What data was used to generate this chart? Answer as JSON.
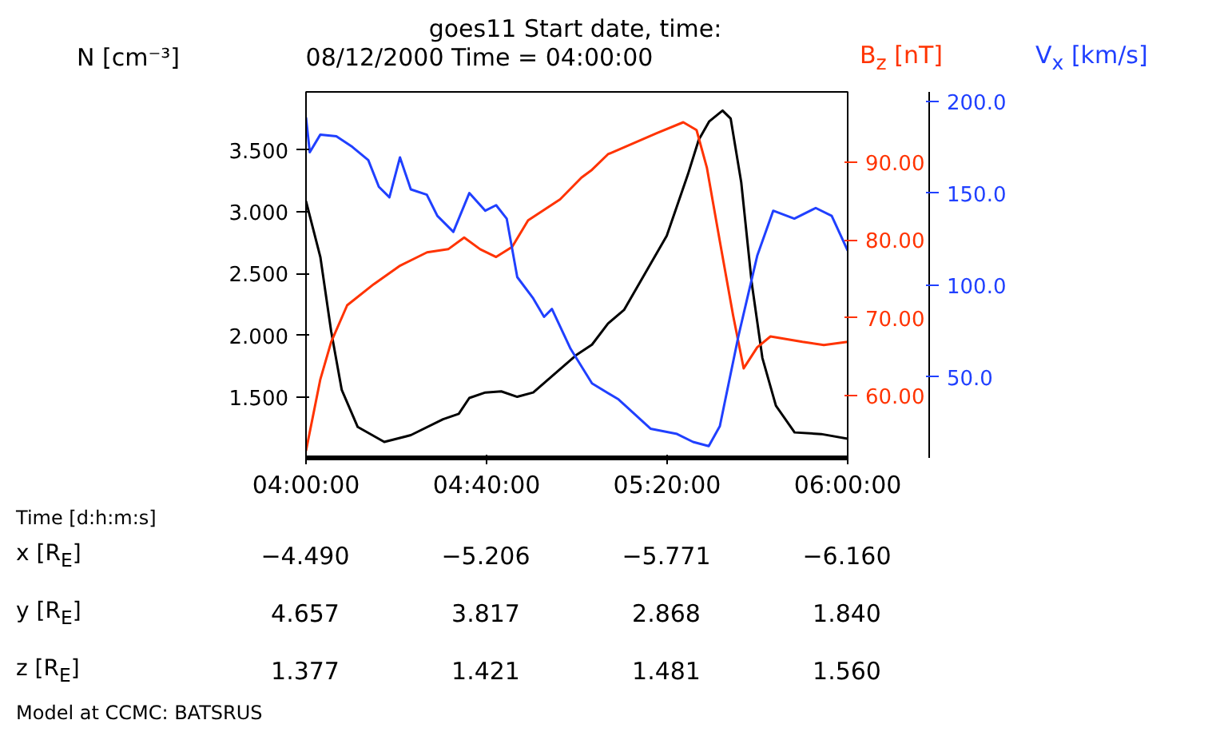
{
  "chart_data": {
    "type": "line",
    "title": "goes11 Start date, time:",
    "subtitle": "08/12/2000 Time = 04:00:00",
    "ylabel": "N [cm⁻³]",
    "y2label": "B$_{z}$ [nT]",
    "y3label": "V$_{x}$ [km/s]",
    "xlabel": "Time [d:h:m:s]",
    "xlim": [
      4.0,
      6.0
    ],
    "xticks": [
      {
        "value": 4.0,
        "label": "04:00:00"
      },
      {
        "value": 4.6667,
        "label": "04:40:00"
      },
      {
        "value": 5.3333,
        "label": "05:20:00"
      },
      {
        "value": 6.0,
        "label": "06:00:00"
      }
    ],
    "ylim": [
      1.01,
      3.97
    ],
    "yticks": [
      {
        "value": 1.5,
        "label": "1.500"
      },
      {
        "value": 2.0,
        "label": "2.000"
      },
      {
        "value": 2.5,
        "label": "2.500"
      },
      {
        "value": 3.0,
        "label": "3.000"
      },
      {
        "value": 3.5,
        "label": "3.500"
      }
    ],
    "y2lim": [
      52.0,
      99.0
    ],
    "y2ticks": [
      {
        "value": 60,
        "label": "60.00"
      },
      {
        "value": 70,
        "label": "70.00"
      },
      {
        "value": 80,
        "label": "80.00"
      },
      {
        "value": 90,
        "label": "90.00"
      }
    ],
    "y3lim": [
      6.0,
      205.0
    ],
    "y3ticks": [
      {
        "value": 50,
        "label": "50.0"
      },
      {
        "value": 100,
        "label": "100.0"
      },
      {
        "value": 150,
        "label": "150.0"
      },
      {
        "value": 200,
        "label": "200.0"
      }
    ],
    "grid": false,
    "marker": "none",
    "line_style": "solid",
    "series": [
      {
        "color": "#000000",
        "x": [
          4.0,
          4.053,
          4.093,
          4.132,
          4.191,
          4.289,
          4.387,
          4.506,
          4.564,
          4.603,
          4.662,
          4.721,
          4.78,
          4.839,
          4.918,
          4.997,
          5.056,
          5.115,
          5.174,
          5.253,
          5.332,
          5.41,
          5.45,
          5.489,
          5.538,
          5.568,
          5.607,
          5.646,
          5.685,
          5.735,
          5.804,
          5.902,
          6.0
        ],
        "values": [
          3.087,
          2.635,
          2.033,
          1.56,
          1.26,
          1.139,
          1.194,
          1.323,
          1.366,
          1.495,
          1.539,
          1.548,
          1.504,
          1.539,
          1.69,
          1.84,
          1.926,
          2.097,
          2.206,
          2.506,
          2.807,
          3.302,
          3.582,
          3.732,
          3.819,
          3.754,
          3.238,
          2.42,
          1.819,
          1.432,
          1.216,
          1.203,
          1.165
        ]
      },
      {
        "color": "#ff3300",
        "axis": "y2",
        "x": [
          4.0,
          4.053,
          4.093,
          4.152,
          4.25,
          4.348,
          4.447,
          4.525,
          4.584,
          4.643,
          4.702,
          4.761,
          4.82,
          4.938,
          5.017,
          5.056,
          5.115,
          5.295,
          5.393,
          5.442,
          5.48,
          5.528,
          5.577,
          5.616,
          5.666,
          5.715,
          5.833,
          5.912,
          6.0
        ],
        "values": [
          52.9,
          62.1,
          66.9,
          71.6,
          74.3,
          76.7,
          78.4,
          78.8,
          80.3,
          78.8,
          77.8,
          79.1,
          82.5,
          85.2,
          88.0,
          89.0,
          91.0,
          93.7,
          95.1,
          94.1,
          89.3,
          79.8,
          70.3,
          63.5,
          66.2,
          67.6,
          66.9,
          66.5,
          66.9
        ]
      },
      {
        "color": "#2040ff",
        "axis": "y3",
        "x": [
          4.0,
          4.014,
          4.053,
          4.112,
          4.171,
          4.23,
          4.269,
          4.308,
          4.347,
          4.387,
          4.446,
          4.485,
          4.544,
          4.603,
          4.662,
          4.702,
          4.741,
          4.78,
          4.839,
          4.879,
          4.908,
          4.977,
          5.056,
          5.154,
          5.272,
          5.37,
          5.429,
          5.487,
          5.528,
          5.597,
          5.666,
          5.725,
          5.803,
          5.882,
          5.941,
          6.0
        ],
        "values": [
          191.1,
          172.2,
          181.8,
          180.9,
          175.1,
          167.9,
          153.4,
          147.7,
          169.4,
          152.0,
          149.1,
          137.6,
          128.9,
          150.0,
          140.4,
          143.4,
          136.1,
          104.3,
          92.7,
          82.7,
          87.0,
          65.3,
          46.5,
          37.8,
          21.9,
          19.0,
          14.7,
          12.4,
          23.3,
          72.5,
          115.9,
          140.4,
          136.1,
          141.9,
          137.6,
          118.7
        ]
      }
    ],
    "annotations": [
      "x [R$_{E}$]",
      "−4.490",
      "−5.206",
      "−5.771",
      "−6.160",
      "y [R$_{E}$]",
      "4.657",
      "3.817",
      "2.868",
      "1.840",
      "z [R$_{E}$]",
      "1.377",
      "1.421",
      "1.481",
      "1.560",
      "Model at CCMC: BATSRUS"
    ]
  }
}
